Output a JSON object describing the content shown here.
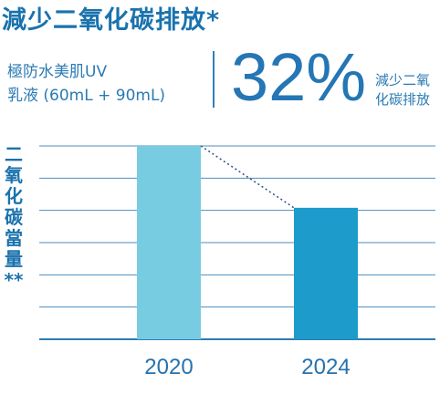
{
  "header": {
    "title": "減少二氧化碳排放*",
    "product_line1": "極防水美肌UV",
    "product_line2": "乳液 (60mL + 90mL)",
    "percent": "32%",
    "reduction_line1": "減少二氧",
    "reduction_line2": "化碳排放"
  },
  "chart_data": {
    "type": "bar",
    "categories": [
      "2020",
      "2024"
    ],
    "values": [
      100,
      68
    ],
    "ylabel": "二氧化碳當量**",
    "ylim": [
      0,
      100
    ],
    "grid": true,
    "colors": [
      "#78cce2",
      "#1d9bca"
    ],
    "connector": "dotted"
  },
  "colors": {
    "title": "#1a72ad",
    "text": "#2a7ab4",
    "grid": "#2d7bb3"
  }
}
